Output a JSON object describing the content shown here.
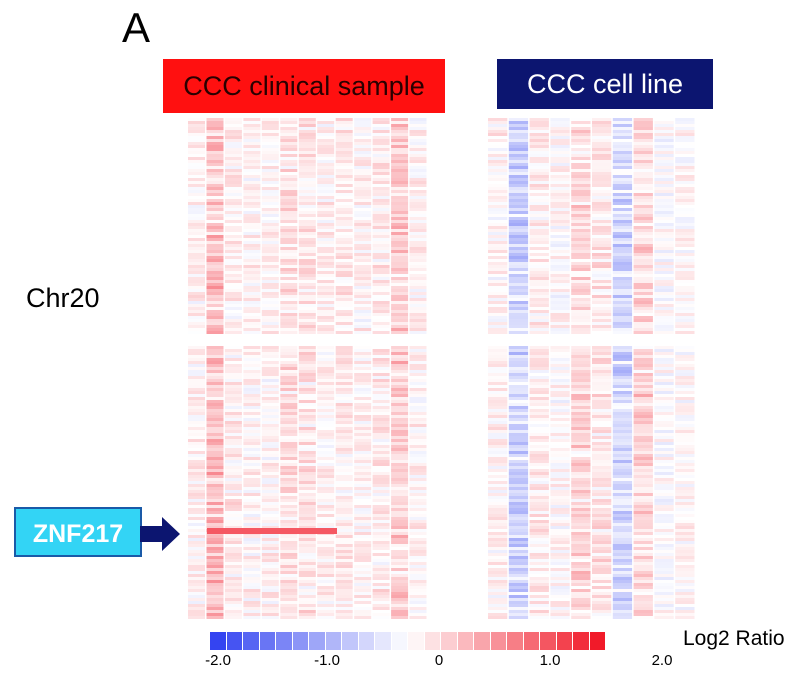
{
  "panel_letter": "A",
  "groups": {
    "clinical_label": "CCC clinical sample",
    "cellline_label": "CCC cell line"
  },
  "chromosome_label": "Chr20",
  "gene_label": "ZNF217",
  "colors": {
    "clinical_header": "#ff1010",
    "cellline_header": "#0c1570",
    "gene_callout": "#33d4f5",
    "arrow": "#0c1570",
    "low": "#2b3cf0",
    "mid": "#ffffff",
    "high": "#f01020"
  },
  "chart_data": {
    "type": "heatmap",
    "title": "Chr20",
    "value_label": "Log2 Ratio",
    "value_range": [
      -2.0,
      2.0
    ],
    "colorbar_ticks": [
      "-2.0",
      "-1.0",
      "0",
      "1.0",
      "2.0"
    ],
    "colorbar_steps": 24,
    "highlighted_gene": "ZNF217",
    "sample_groups": [
      {
        "name": "CCC clinical sample",
        "columns": 13,
        "column_mean_log2": [
          0.1,
          0.5,
          0.15,
          0.1,
          0.1,
          0.25,
          0.2,
          0.1,
          0.15,
          0.1,
          0.15,
          0.4,
          0.1
        ]
      },
      {
        "name": "CCC cell line",
        "columns": 10,
        "column_mean_log2": [
          0.1,
          -0.45,
          0.15,
          0.05,
          0.3,
          0.2,
          -0.4,
          0.35,
          0.0,
          0.05
        ]
      }
    ]
  }
}
